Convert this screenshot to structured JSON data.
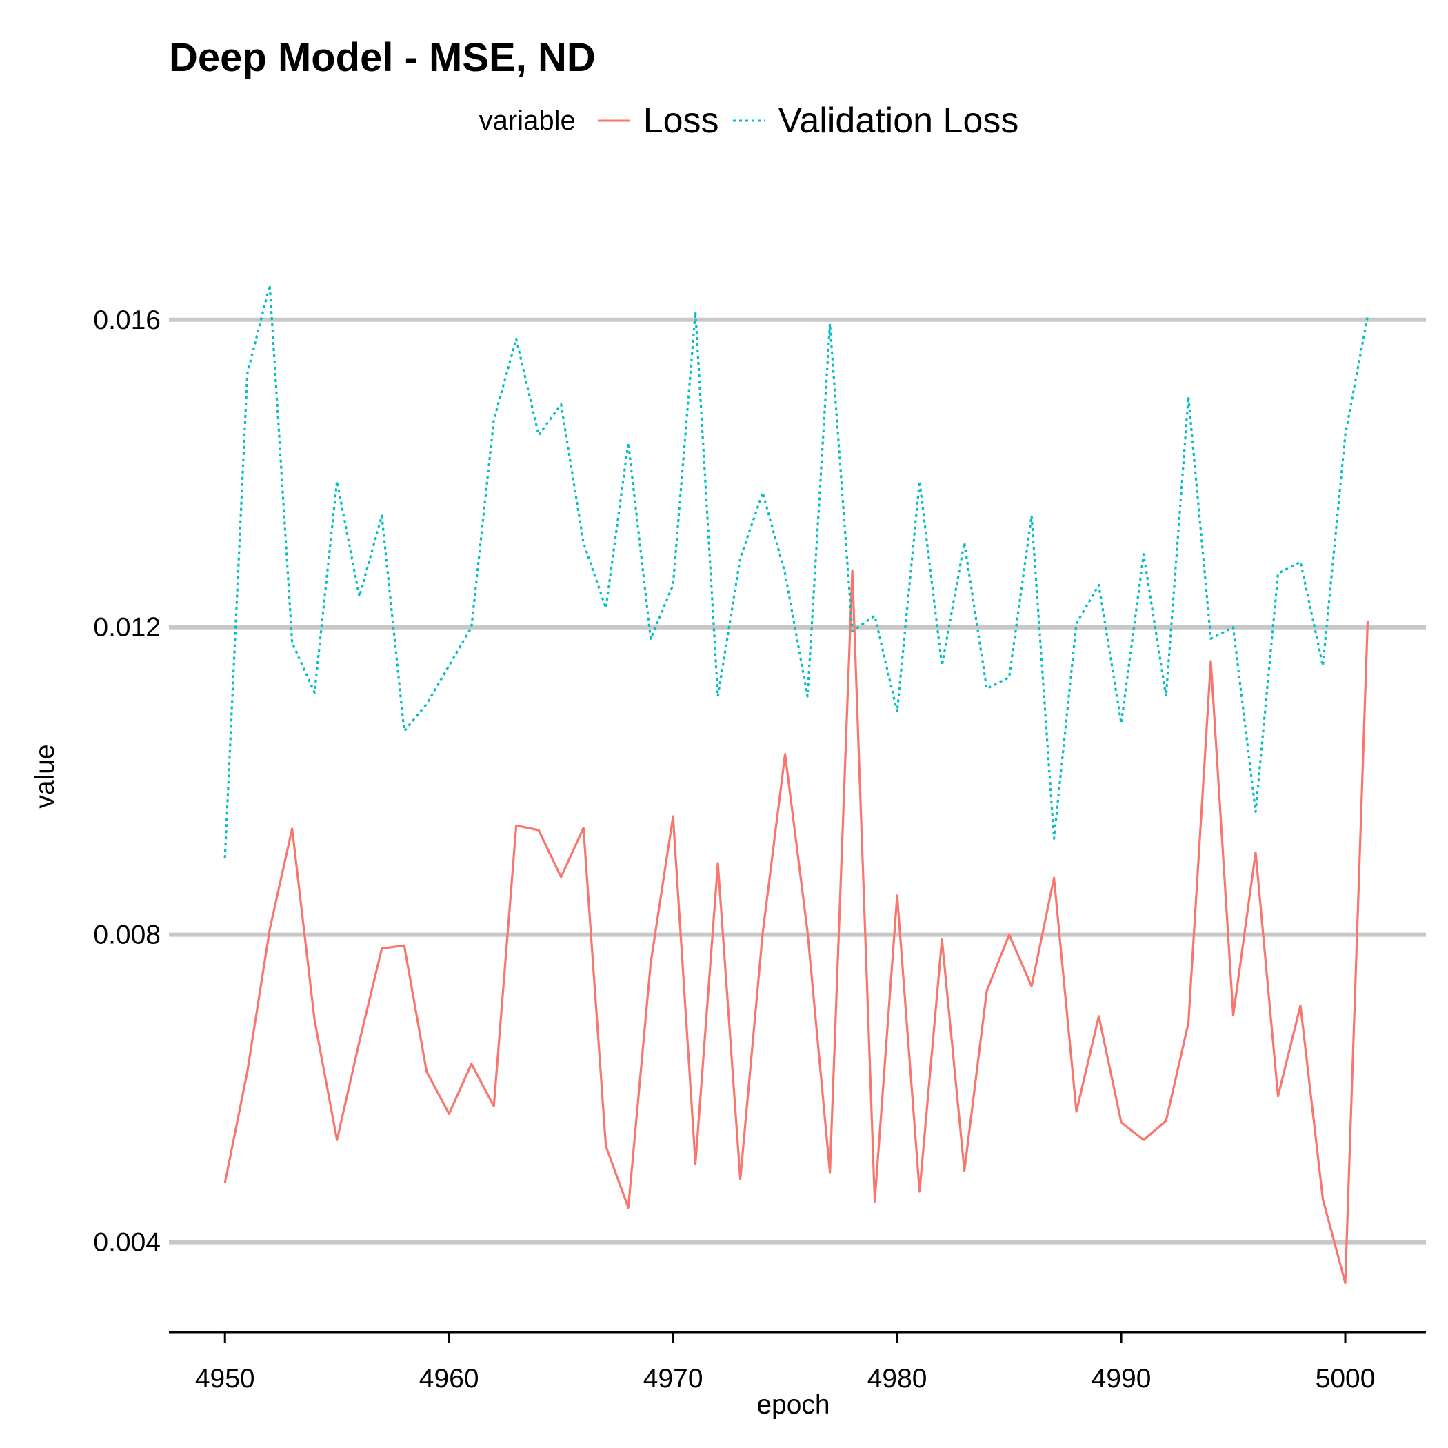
{
  "chart_data": {
    "type": "line",
    "title": "Deep Model - MSE, ND",
    "xlabel": "epoch",
    "ylabel": "value",
    "legend_title": "variable",
    "legend_position": "top",
    "grid": "horizontal major gridlines",
    "xlim": [
      4947.5,
      5003.6
    ],
    "ylim": [
      0.00283,
      0.0172
    ],
    "x_ticks": [
      4950,
      4960,
      4970,
      4980,
      4990,
      5000
    ],
    "x_tick_labels": [
      "4950",
      "4960",
      "4970",
      "4980",
      "4990",
      "5000"
    ],
    "y_ticks": [
      0.004,
      0.008,
      0.012,
      0.016
    ],
    "y_tick_labels": [
      "0.004",
      "0.008",
      "0.012",
      "0.016"
    ],
    "x": [
      4950,
      4951,
      4952,
      4953,
      4954,
      4955,
      4956,
      4957,
      4958,
      4959,
      4960,
      4961,
      4962,
      4963,
      4964,
      4965,
      4966,
      4967,
      4968,
      4969,
      4970,
      4971,
      4972,
      4973,
      4974,
      4975,
      4976,
      4977,
      4978,
      4979,
      4980,
      4981,
      4982,
      4983,
      4984,
      4985,
      4986,
      4987,
      4988,
      4989,
      4990,
      4991,
      4992,
      4993,
      4994,
      4995,
      4996,
      4997,
      4998,
      4999,
      5000,
      5001
    ],
    "series": [
      {
        "name": "Loss",
        "color": "#F8766D",
        "linestyle": "solid",
        "values": [
          0.00477,
          0.00622,
          0.00807,
          0.00938,
          0.00689,
          0.00533,
          0.00661,
          0.00782,
          0.00786,
          0.00622,
          0.00567,
          0.00632,
          0.00577,
          0.00942,
          0.00936,
          0.00875,
          0.00939,
          0.00525,
          0.00445,
          0.00763,
          0.00954,
          0.00502,
          0.00893,
          0.00482,
          0.00802,
          0.01035,
          0.00804,
          0.00491,
          0.01274,
          0.00453,
          0.00851,
          0.00466,
          0.00794,
          0.00493,
          0.00727,
          0.008,
          0.00733,
          0.00874,
          0.0057,
          0.00694,
          0.00556,
          0.00533,
          0.00558,
          0.00685,
          0.01156,
          0.00695,
          0.00907,
          0.0059,
          0.00708,
          0.00456,
          0.00347,
          0.01208
        ]
      },
      {
        "name": "Validation Loss",
        "color": "#00BFC4",
        "linestyle": "dotted",
        "values": [
          0.009,
          0.0153,
          0.01645,
          0.0118,
          0.01115,
          0.0139,
          0.0124,
          0.01345,
          0.01065,
          0.011,
          0.0115,
          0.012,
          0.0147,
          0.01575,
          0.0145,
          0.0149,
          0.0131,
          0.01225,
          0.0144,
          0.01185,
          0.01255,
          0.0161,
          0.0111,
          0.0129,
          0.01375,
          0.0127,
          0.0111,
          0.01595,
          0.01195,
          0.01215,
          0.0109,
          0.0139,
          0.0115,
          0.0131,
          0.0112,
          0.01135,
          0.01345,
          0.00925,
          0.01205,
          0.01255,
          0.01075,
          0.01295,
          0.0111,
          0.015,
          0.01185,
          0.012,
          0.0096,
          0.0127,
          0.01285,
          0.0115,
          0.0145,
          0.01605
        ]
      }
    ]
  }
}
